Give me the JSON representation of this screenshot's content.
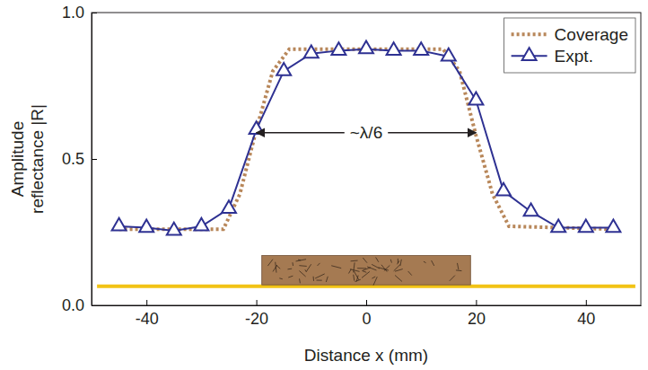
{
  "chart_data": {
    "type": "line",
    "xlabel": "Distance x (mm)",
    "ylabel": "Amplitude reflectance |R|",
    "xlim": [
      -50,
      50
    ],
    "ylim": [
      0,
      1
    ],
    "xticks": [
      -40,
      -20,
      0,
      20,
      40
    ],
    "yticks": [
      {
        "value": 0,
        "label": "0.0"
      },
      {
        "value": 0.5,
        "label": "0.5"
      },
      {
        "value": 1,
        "label": "1.0"
      }
    ],
    "legend": "upper right",
    "annotations": [
      "~λ/6"
    ],
    "series": [
      {
        "name": "Coverage",
        "color": "#b8875a",
        "line_style": "dotted",
        "x": [
          -45,
          -26,
          -23,
          -20,
          -17,
          -14,
          14,
          17,
          20,
          23,
          26,
          45
        ],
        "values": [
          0.26,
          0.26,
          0.38,
          0.6,
          0.8,
          0.875,
          0.875,
          0.8,
          0.58,
          0.38,
          0.27,
          0.26
        ]
      },
      {
        "name": "Expt.",
        "color": "#2e3192",
        "line_style": "solid",
        "marker": "triangle",
        "x": [
          -45,
          -40,
          -35,
          -30,
          -25,
          -20,
          -15,
          -10,
          -5,
          0,
          5,
          10,
          15,
          20,
          25,
          30,
          35,
          40,
          45
        ],
        "values": [
          0.27,
          0.265,
          0.255,
          0.27,
          0.33,
          0.6,
          0.8,
          0.86,
          0.87,
          0.875,
          0.87,
          0.87,
          0.85,
          0.7,
          0.39,
          0.32,
          0.265,
          0.265,
          0.265
        ]
      }
    ]
  }
}
